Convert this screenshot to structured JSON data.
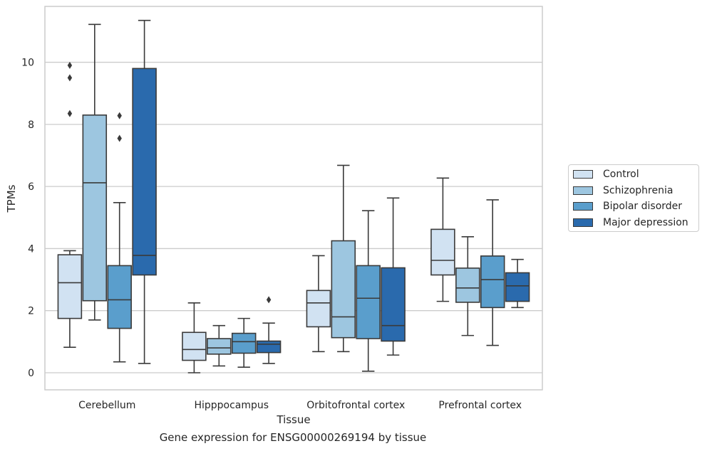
{
  "caption": "Gene expression for ENSG00000269194 by tissue",
  "chart_data": {
    "type": "box",
    "title": "",
    "xlabel": "Tissue",
    "ylabel": "TPMs",
    "ylim": [
      -0.55,
      11.8
    ],
    "yticks": [
      0,
      2,
      4,
      6,
      8,
      10
    ],
    "grid": "horizontal",
    "legend_position": "right",
    "categories": [
      "Cerebellum",
      "Hipppocampus",
      "Orbitofrontal cortex",
      "Prefrontal cortex"
    ],
    "series": [
      {
        "name": "Control",
        "color": "#d1e2f2",
        "boxes": [
          {
            "whislo": 0.82,
            "q1": 1.75,
            "med": 2.9,
            "q3": 3.8,
            "whishi": 3.93,
            "fliers": [
              8.35,
              9.5,
              9.9
            ]
          },
          {
            "whislo": 0.0,
            "q1": 0.4,
            "med": 0.75,
            "q3": 1.3,
            "whishi": 2.25,
            "fliers": []
          },
          {
            "whislo": 0.68,
            "q1": 1.48,
            "med": 2.25,
            "q3": 2.65,
            "whishi": 3.77,
            "fliers": []
          },
          {
            "whislo": 2.3,
            "q1": 3.15,
            "med": 3.62,
            "q3": 4.62,
            "whishi": 6.27,
            "fliers": []
          }
        ]
      },
      {
        "name": "Schizophrenia",
        "color": "#9dc6e0",
        "boxes": [
          {
            "whislo": 1.7,
            "q1": 2.32,
            "med": 6.12,
            "q3": 8.3,
            "whishi": 11.22,
            "fliers": []
          },
          {
            "whislo": 0.22,
            "q1": 0.6,
            "med": 0.8,
            "q3": 1.1,
            "whishi": 1.52,
            "fliers": []
          },
          {
            "whislo": 0.68,
            "q1": 1.13,
            "med": 1.8,
            "q3": 4.25,
            "whishi": 6.68,
            "fliers": []
          },
          {
            "whislo": 1.2,
            "q1": 2.27,
            "med": 2.73,
            "q3": 3.37,
            "whishi": 4.38,
            "fliers": []
          }
        ]
      },
      {
        "name": "Bipolar disorder",
        "color": "#5a9ecc",
        "boxes": [
          {
            "whislo": 0.35,
            "q1": 1.43,
            "med": 2.35,
            "q3": 3.45,
            "whishi": 5.48,
            "fliers": [
              7.55,
              8.28
            ]
          },
          {
            "whislo": 0.18,
            "q1": 0.63,
            "med": 1.0,
            "q3": 1.27,
            "whishi": 1.75,
            "fliers": []
          },
          {
            "whislo": 0.05,
            "q1": 1.1,
            "med": 2.4,
            "q3": 3.45,
            "whishi": 5.22,
            "fliers": []
          },
          {
            "whislo": 0.88,
            "q1": 2.1,
            "med": 3.0,
            "q3": 3.76,
            "whishi": 5.57,
            "fliers": []
          }
        ]
      },
      {
        "name": "Major depression",
        "color": "#2a6aad",
        "boxes": [
          {
            "whislo": 0.3,
            "q1": 3.15,
            "med": 3.78,
            "q3": 9.8,
            "whishi": 11.35,
            "fliers": []
          },
          {
            "whislo": 0.3,
            "q1": 0.65,
            "med": 0.92,
            "q3": 1.02,
            "whishi": 1.6,
            "fliers": [
              2.35
            ]
          },
          {
            "whislo": 0.57,
            "q1": 1.02,
            "med": 1.52,
            "q3": 3.38,
            "whishi": 5.63,
            "fliers": []
          },
          {
            "whislo": 2.1,
            "q1": 2.3,
            "med": 2.8,
            "q3": 3.22,
            "whishi": 3.65,
            "fliers": []
          }
        ]
      }
    ]
  }
}
